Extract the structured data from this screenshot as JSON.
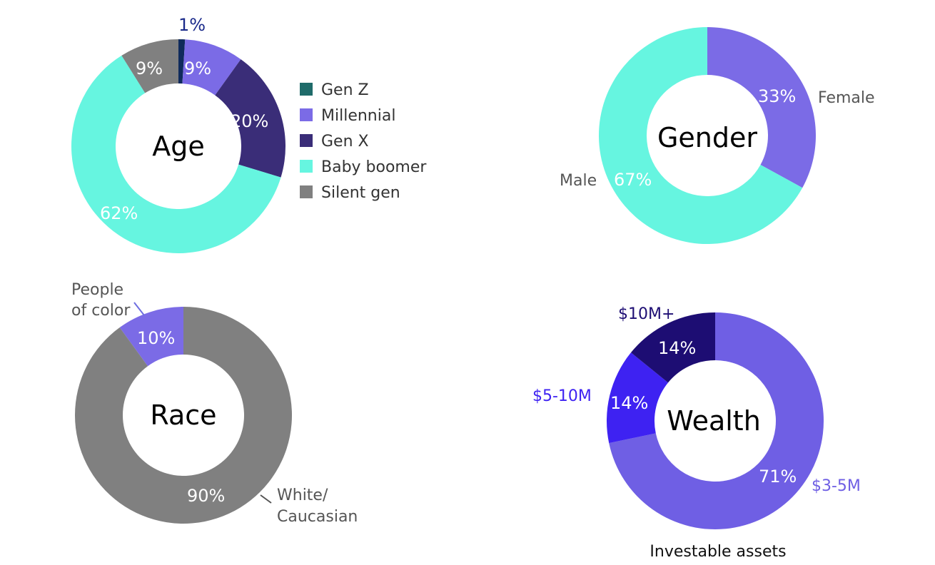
{
  "chart_data": [
    {
      "type": "pie",
      "title": "Age",
      "categories": [
        "Gen Z",
        "Millennial",
        "Gen X",
        "Baby boomer",
        "Silent gen"
      ],
      "values": [
        1,
        9,
        20,
        62,
        9
      ],
      "labels": [
        "1%",
        "9%",
        "20%",
        "62%",
        "9%"
      ],
      "colors": [
        "#0f2a5c",
        "#7b6be6",
        "#3a2d78",
        "#66f5e0",
        "#808080"
      ],
      "legend": "right"
    },
    {
      "type": "pie",
      "title": "Gender",
      "categories": [
        "Female",
        "Male"
      ],
      "values": [
        33,
        67
      ],
      "labels": [
        "33%",
        "67%"
      ],
      "colors": [
        "#7b6be6",
        "#66f5e0"
      ]
    },
    {
      "type": "pie",
      "title": "Race",
      "categories": [
        "People of color",
        "White/ Caucasian"
      ],
      "values": [
        10,
        90
      ],
      "labels": [
        "10%",
        "90%"
      ],
      "colors": [
        "#7b6be6",
        "#808080"
      ]
    },
    {
      "type": "pie",
      "title": "Wealth",
      "categories": [
        "$3-5M",
        "$5-10M",
        "$10M+"
      ],
      "values": [
        71,
        14,
        14
      ],
      "labels": [
        "71%",
        "14%",
        "14%"
      ],
      "colors": [
        "#6f5fe4",
        "#3e22f2",
        "#1d0d73"
      ],
      "caption": "Investable assets"
    }
  ],
  "text": {
    "race_poc_line1": "People",
    "race_poc_line2": "of color",
    "race_white_line1": "White/",
    "race_white_line2": "Caucasian",
    "gender_female": "Female",
    "gender_male": "Male",
    "wealth_10m": "$10M+",
    "wealth_5_10m": "$5-10M",
    "wealth_3_5m": "$3-5M"
  }
}
